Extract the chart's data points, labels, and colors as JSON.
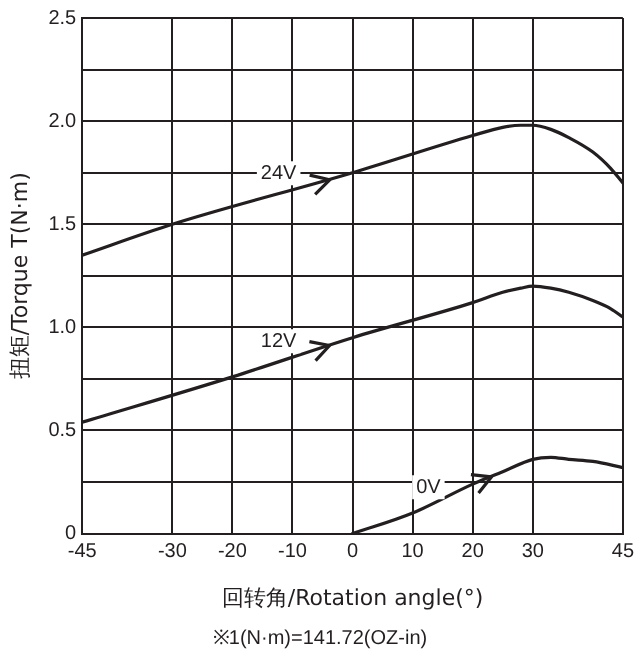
{
  "chart_data": {
    "type": "line",
    "xlabel": "回转角/Rotation angle(°)",
    "ylabel": "扭矩/Torque T(N·m)",
    "annotations": [
      "※1(N·m)=141.72(OZ-in)"
    ],
    "xlim": [
      -45,
      45
    ],
    "xticks": [
      -45,
      -30,
      -20,
      -10,
      0,
      10,
      20,
      30,
      45
    ],
    "ylim": [
      0,
      2.5
    ],
    "yticks": [
      0,
      {
        "value": 0.25,
        "label": null
      },
      0.5,
      {
        "value": 0.75,
        "label": null
      },
      {
        "value": 1,
        "label": "1.0"
      },
      {
        "value": 1.25,
        "label": null
      },
      {
        "value": 1.5,
        "label": "1.5"
      },
      {
        "value": 1.75,
        "label": null
      },
      {
        "value": 2,
        "label": "2.0"
      },
      {
        "value": 2.25,
        "label": null
      },
      {
        "value": 2.5,
        "label": "2.5"
      }
    ],
    "grid": true,
    "legend": "center",
    "marker": "none",
    "line_style": "solid",
    "series": [
      {
        "name": "24V",
        "color": "#231f20",
        "x": [
          -45,
          -30,
          0,
          20,
          25,
          28,
          30,
          33,
          36,
          40,
          43,
          45
        ],
        "values": [
          1.35,
          1.5,
          1.75,
          1.93,
          1.97,
          1.98,
          1.98,
          1.96,
          1.92,
          1.85,
          1.77,
          1.7
        ]
      },
      {
        "name": "12V",
        "color": "#231f20",
        "x": [
          -45,
          -20,
          0,
          20,
          25,
          28,
          30,
          33,
          36,
          40,
          43,
          45
        ],
        "values": [
          0.54,
          0.76,
          0.95,
          1.12,
          1.17,
          1.19,
          1.2,
          1.19,
          1.17,
          1.13,
          1.09,
          1.05
        ]
      },
      {
        "name": "0V",
        "color": "#231f20",
        "x": [
          0,
          10,
          20,
          25,
          30,
          33,
          36,
          40,
          45
        ],
        "values": [
          0,
          0.1,
          0.24,
          0.3,
          0.36,
          0.37,
          0.36,
          0.35,
          0.32
        ]
      }
    ]
  }
}
